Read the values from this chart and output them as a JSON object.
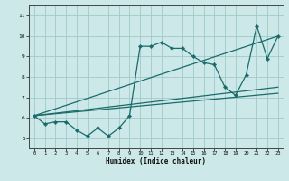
{
  "xlabel": "Humidex (Indice chaleur)",
  "xlim": [
    -0.5,
    23.5
  ],
  "ylim": [
    4.5,
    11.5
  ],
  "yticks": [
    5,
    6,
    7,
    8,
    9,
    10,
    11
  ],
  "xticks": [
    0,
    1,
    2,
    3,
    4,
    5,
    6,
    7,
    8,
    9,
    10,
    11,
    12,
    13,
    14,
    15,
    16,
    17,
    18,
    19,
    20,
    21,
    22,
    23
  ],
  "bg_color": "#cce8e8",
  "line_color": "#1a6b6b",
  "grid_color": "#a0c8c8",
  "series1": {
    "x": [
      0,
      1,
      2,
      3,
      4,
      5,
      6,
      7,
      8,
      9,
      10,
      11,
      12,
      13,
      14,
      15,
      16,
      17,
      18,
      19,
      20,
      21,
      22,
      23
    ],
    "y": [
      6.1,
      5.7,
      5.8,
      5.8,
      5.4,
      5.1,
      5.5,
      5.1,
      5.5,
      6.1,
      9.5,
      9.5,
      9.7,
      9.4,
      9.4,
      9.0,
      8.7,
      8.6,
      7.5,
      7.1,
      8.1,
      10.5,
      8.9,
      10.0
    ]
  },
  "series2": {
    "x": [
      0,
      23
    ],
    "y": [
      6.1,
      10.0
    ]
  },
  "series3": {
    "x": [
      0,
      23
    ],
    "y": [
      6.1,
      7.5
    ]
  },
  "series4": {
    "x": [
      0,
      23
    ],
    "y": [
      6.1,
      7.2
    ]
  }
}
